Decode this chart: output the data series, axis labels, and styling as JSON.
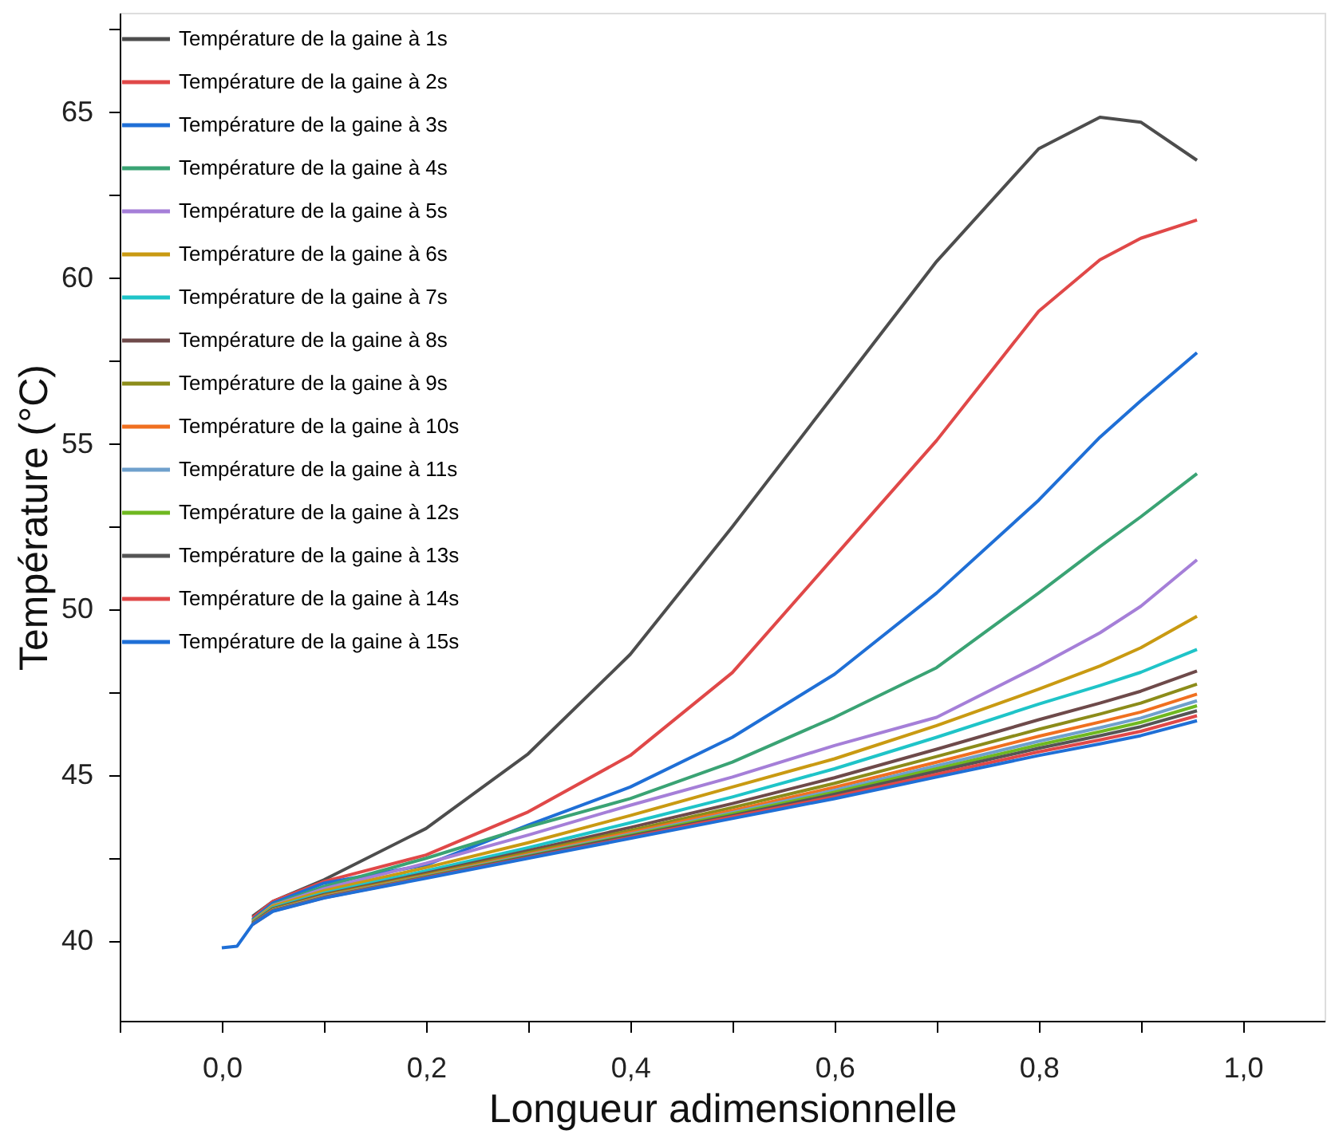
{
  "chart_data": {
    "type": "line",
    "xlabel": "Longueur adimensionnelle",
    "ylabel": "Température (°C)",
    "x": [
      0,
      0.015,
      0.03,
      0.05,
      0.1,
      0.2,
      0.3,
      0.4,
      0.5,
      0.6,
      0.7,
      0.8,
      0.86,
      0.9,
      0.955
    ],
    "xlim": [
      -0.1,
      1.08
    ],
    "xticks": [
      {
        "value": -0.1,
        "label": null
      },
      {
        "value": 0,
        "label": "0,0"
      },
      {
        "value": 0.1,
        "label": null
      },
      {
        "value": 0.2,
        "label": "0,2"
      },
      {
        "value": 0.3,
        "label": null
      },
      {
        "value": 0.4,
        "label": "0,4"
      },
      {
        "value": 0.5,
        "label": null
      },
      {
        "value": 0.6,
        "label": "0,6"
      },
      {
        "value": 0.7,
        "label": null
      },
      {
        "value": 0.8,
        "label": "0,8"
      },
      {
        "value": 0.9,
        "label": null
      },
      {
        "value": 1.0,
        "label": "1,0"
      }
    ],
    "ylim": [
      37.6,
      68
    ],
    "yticks": [
      40,
      {
        "value": 42.5,
        "label": null
      },
      45,
      {
        "value": 47.5,
        "label": null
      },
      50,
      {
        "value": 52.5,
        "label": null
      },
      55,
      {
        "value": 57.5,
        "label": null
      },
      60,
      {
        "value": 62.5,
        "label": null
      },
      65,
      {
        "value": 67.5,
        "label": null
      }
    ],
    "grid": false,
    "legend": "top left",
    "marker": "none",
    "line_style": "solid",
    "series": [
      {
        "name": "Température de la gaine à 1s",
        "color": "#4d4d4d",
        "values": [
          null,
          null,
          40.75,
          41.2,
          41.85,
          43.4,
          45.65,
          48.65,
          52.5,
          56.5,
          60.5,
          63.9,
          64.85,
          64.7,
          63.55
        ]
      },
      {
        "name": "Température de la gaine à 2s",
        "color": "#e04848",
        "values": [
          null,
          null,
          40.7,
          41.2,
          41.8,
          42.6,
          43.9,
          45.6,
          48.1,
          51.6,
          55.1,
          59.0,
          60.55,
          61.2,
          61.75
        ]
      },
      {
        "name": "Température de la gaine à 3s",
        "color": "#1f6fd6",
        "values": [
          null,
          null,
          40.65,
          41.15,
          41.75,
          42.3,
          43.5,
          44.65,
          46.15,
          48.05,
          50.5,
          53.3,
          55.2,
          56.3,
          57.75
        ]
      },
      {
        "name": "Température de la gaine à 4s",
        "color": "#3aa374",
        "values": [
          null,
          null,
          40.62,
          41.1,
          41.65,
          42.5,
          43.45,
          44.3,
          45.4,
          46.75,
          48.25,
          50.5,
          51.9,
          52.8,
          54.1
        ]
      },
      {
        "name": "Température de la gaine à 5s",
        "color": "#a57fd8",
        "values": [
          null,
          null,
          40.6,
          41.08,
          41.58,
          42.35,
          43.2,
          44.1,
          44.95,
          45.9,
          46.75,
          48.3,
          49.3,
          50.1,
          51.5
        ]
      },
      {
        "name": "Température de la gaine à 6s",
        "color": "#c99a12",
        "values": [
          null,
          null,
          40.59,
          41.06,
          41.52,
          42.22,
          42.97,
          43.79,
          44.65,
          45.5,
          46.5,
          47.6,
          48.3,
          48.85,
          49.8
        ]
      },
      {
        "name": "Température de la gaine à 7s",
        "color": "#1fc4c8",
        "values": [
          null,
          null,
          40.56,
          41.01,
          41.45,
          42.12,
          42.82,
          43.57,
          44.35,
          45.2,
          46.15,
          47.15,
          47.71,
          48.11,
          48.8
        ]
      },
      {
        "name": "Température de la gaine à 8s",
        "color": "#6e4a4a",
        "values": [
          null,
          null,
          40.55,
          40.98,
          41.41,
          42.05,
          42.73,
          43.43,
          44.15,
          44.93,
          45.79,
          46.68,
          47.18,
          47.54,
          48.15
        ]
      },
      {
        "name": "Température de la gaine à 9s",
        "color": "#8c8c1a",
        "values": [
          null,
          null,
          40.53,
          40.96,
          41.38,
          42.01,
          42.67,
          43.34,
          44.03,
          44.76,
          45.57,
          46.39,
          46.85,
          47.18,
          47.75
        ]
      },
      {
        "name": "Température de la gaine à 10s",
        "color": "#f07020",
        "values": [
          null,
          null,
          40.52,
          40.94,
          41.36,
          41.98,
          42.62,
          43.28,
          43.94,
          44.64,
          45.4,
          46.18,
          46.61,
          46.91,
          47.45
        ]
      },
      {
        "name": "Température de la gaine à 11s",
        "color": "#6fa0cc",
        "values": [
          null,
          null,
          40.52,
          40.93,
          41.34,
          41.96,
          42.59,
          43.23,
          43.88,
          44.55,
          45.29,
          46.03,
          46.44,
          46.73,
          47.25
        ]
      },
      {
        "name": "Température de la gaine à 12s",
        "color": "#6fb820",
        "values": [
          null,
          null,
          null,
          40.92,
          41.33,
          41.95,
          42.57,
          43.2,
          43.84,
          44.49,
          45.2,
          45.92,
          46.32,
          46.6,
          47.1
        ]
      },
      {
        "name": "Température de la gaine à 13s",
        "color": "#555555",
        "values": [
          null,
          null,
          40.51,
          40.92,
          41.32,
          41.93,
          42.55,
          43.17,
          43.79,
          44.43,
          45.12,
          45.82,
          46.2,
          46.47,
          46.95
        ]
      },
      {
        "name": "Température de la gaine à 14s",
        "color": "#e04848",
        "values": [
          null,
          null,
          40.5,
          40.91,
          41.31,
          41.92,
          42.52,
          43.13,
          43.75,
          44.36,
          45.03,
          45.71,
          46.07,
          46.33,
          46.8
        ]
      },
      {
        "name": "Température de la gaine à 15s",
        "color": "#1f6fd6",
        "values": [
          39.8,
          39.85,
          40.5,
          40.9,
          41.3,
          41.9,
          42.5,
          43.1,
          43.7,
          44.3,
          44.95,
          45.6,
          45.95,
          46.2,
          46.65
        ]
      }
    ]
  }
}
